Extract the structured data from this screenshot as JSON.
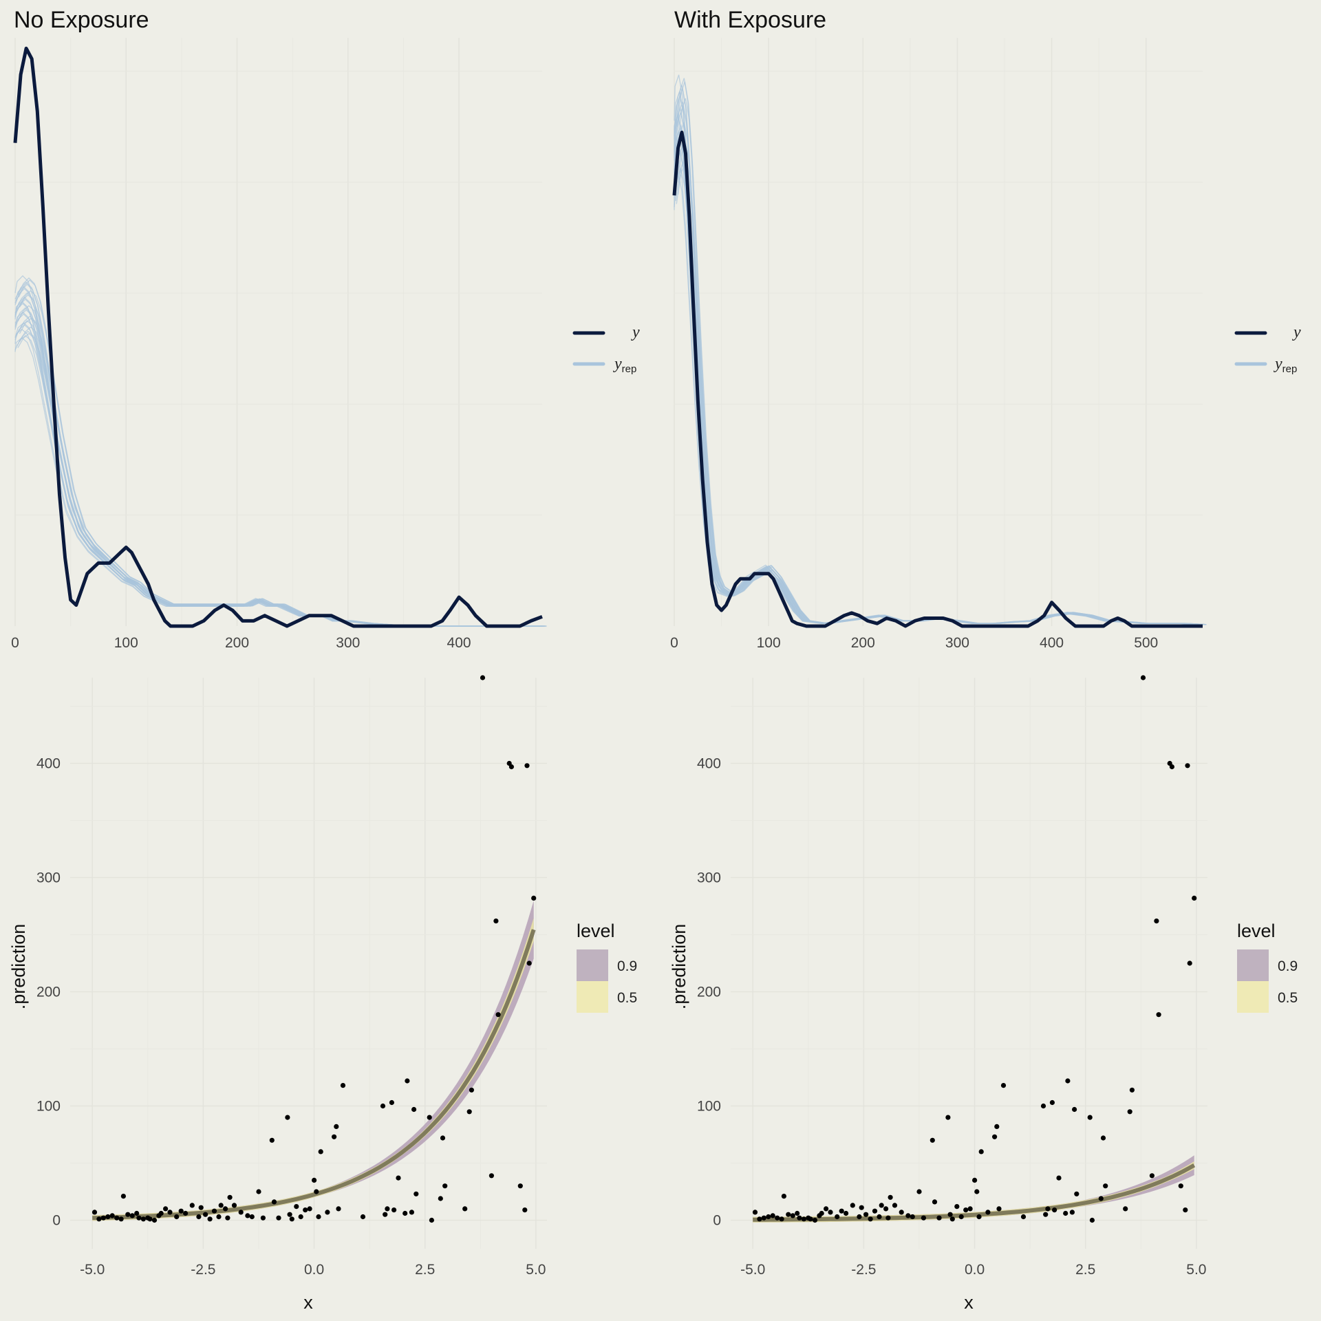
{
  "chart_data": [
    {
      "type": "line",
      "subtype": "density-overlay",
      "title": "No Exposure",
      "xlim": [
        0,
        475
      ],
      "x_ticks": [
        "0",
        "100",
        "200",
        "300",
        "400"
      ],
      "x_tick_values": [
        0,
        100,
        200,
        300,
        400
      ],
      "y_ticks_shown": false,
      "grid": true,
      "legend": {
        "placement": "right",
        "entries": [
          {
            "main": "y",
            "sub": "",
            "color": "#0b1a3d"
          },
          {
            "main": "y",
            "sub": "rep",
            "color": "#a9c4dc"
          }
        ]
      },
      "series": [
        {
          "name": "y",
          "color": "#0b1a3d",
          "x": [
            0,
            5,
            10,
            15,
            20,
            25,
            30,
            35,
            40,
            45,
            50,
            55,
            60,
            65,
            70,
            75,
            80,
            85,
            90,
            95,
            100,
            105,
            110,
            115,
            120,
            125,
            130,
            135,
            140,
            150,
            160,
            170,
            180,
            188,
            196,
            205,
            215,
            225,
            235,
            245,
            255,
            265,
            275,
            285,
            295,
            305,
            320,
            340,
            360,
            375,
            385,
            392,
            400,
            408,
            415,
            425,
            440,
            455,
            465,
            475
          ],
          "y": [
            0.0092,
            0.0105,
            0.011,
            0.0108,
            0.0098,
            0.008,
            0.006,
            0.0042,
            0.0025,
            0.0013,
            0.0005,
            0.0004,
            0.0007,
            0.001,
            0.0011,
            0.0012,
            0.0012,
            0.0012,
            0.0013,
            0.0014,
            0.0015,
            0.0014,
            0.0012,
            0.001,
            0.0008,
            0.0005,
            0.0003,
            0.0001,
            0.0,
            0.0,
            0.0,
            0.0001,
            0.0003,
            0.0004,
            0.0003,
            0.0001,
            0.0001,
            0.0002,
            0.0001,
            0.0,
            0.0001,
            0.0002,
            0.0002,
            0.0002,
            0.0001,
            0.0,
            0.0,
            0.0,
            0.0,
            0.0,
            0.0001,
            0.0003,
            0.00055,
            0.0004,
            0.0002,
            0.0,
            0.0,
            0.0,
            0.0001,
            0.00018
          ]
        },
        {
          "name": "y_rep",
          "color": "#a9c4dc",
          "x": [
            0,
            5,
            10,
            15,
            20,
            25,
            30,
            35,
            40,
            50,
            60,
            70,
            80,
            90,
            100,
            110,
            120,
            130,
            140,
            150,
            160,
            170,
            180,
            190,
            200,
            210,
            220,
            230,
            240,
            250,
            260,
            270,
            280,
            290,
            300,
            320,
            340,
            360,
            380,
            400,
            420,
            440,
            460,
            475
          ],
          "y": [
            0.0058,
            0.006,
            0.0061,
            0.006,
            0.0057,
            0.0052,
            0.0046,
            0.004,
            0.0034,
            0.0024,
            0.0018,
            0.0015,
            0.0013,
            0.0011,
            0.0009,
            0.0008,
            0.0006,
            0.0005,
            0.0004,
            0.0004,
            0.0004,
            0.0004,
            0.0004,
            0.0004,
            0.0004,
            0.0004,
            0.0005,
            0.0004,
            0.0004,
            0.0003,
            0.0002,
            0.0002,
            0.0002,
            0.0001,
            0.0001,
            5e-05,
            2e-05,
            0.0,
            0.0,
            0.0,
            0.0,
            0.0,
            0.0,
            0.0
          ]
        }
      ]
    },
    {
      "type": "line",
      "subtype": "density-overlay",
      "title": "With Exposure",
      "xlim": [
        0,
        560
      ],
      "x_ticks": [
        "0",
        "100",
        "200",
        "300",
        "400",
        "500"
      ],
      "x_tick_values": [
        0,
        100,
        200,
        300,
        400,
        500
      ],
      "y_ticks_shown": false,
      "grid": true,
      "legend": {
        "placement": "right",
        "entries": [
          {
            "main": "y",
            "sub": "",
            "color": "#0b1a3d"
          },
          {
            "main": "y",
            "sub": "rep",
            "color": "#a9c4dc"
          }
        ]
      },
      "series": [
        {
          "name": "y",
          "color": "#0b1a3d",
          "x": [
            0,
            4,
            8,
            12,
            16,
            20,
            25,
            30,
            35,
            40,
            45,
            50,
            55,
            60,
            65,
            70,
            75,
            80,
            85,
            90,
            95,
            100,
            105,
            110,
            115,
            120,
            125,
            130,
            140,
            150,
            160,
            170,
            180,
            188,
            196,
            205,
            215,
            225,
            235,
            245,
            255,
            265,
            275,
            285,
            295,
            305,
            320,
            340,
            360,
            375,
            385,
            392,
            400,
            408,
            415,
            425,
            440,
            455,
            463,
            470,
            477,
            485,
            500,
            520,
            540,
            560
          ],
          "y": [
            0.0082,
            0.0091,
            0.0094,
            0.009,
            0.0078,
            0.0062,
            0.0043,
            0.0028,
            0.0016,
            0.0008,
            0.0004,
            0.0003,
            0.0004,
            0.0006,
            0.0008,
            0.0009,
            0.0009,
            0.0009,
            0.001,
            0.001,
            0.001,
            0.001,
            0.0009,
            0.0007,
            0.0005,
            0.0003,
            0.0001,
            5e-05,
            0.0,
            0.0,
            0.0,
            0.0001,
            0.0002,
            0.00025,
            0.0002,
            0.0001,
            5e-05,
            0.00015,
            0.0001,
            0.0,
            0.0001,
            0.00015,
            0.00015,
            0.00015,
            0.0001,
            0.0,
            0.0,
            0.0,
            0.0,
            0.0,
            0.0001,
            0.0002,
            0.00045,
            0.0003,
            0.00015,
            0.0,
            0.0,
            0.0,
            0.0001,
            0.00015,
            0.0001,
            0.0,
            0.0,
            0.0,
            0.0,
            0.0
          ]
        },
        {
          "name": "y_rep",
          "color": "#a9c4dc",
          "x": [
            0,
            4,
            8,
            12,
            16,
            20,
            25,
            30,
            35,
            40,
            45,
            50,
            60,
            70,
            80,
            90,
            100,
            110,
            120,
            130,
            140,
            160,
            180,
            200,
            220,
            240,
            260,
            280,
            300,
            320,
            340,
            360,
            380,
            400,
            420,
            440,
            460,
            480,
            500,
            520,
            540,
            560
          ],
          "y": [
            0.0088,
            0.0094,
            0.0096,
            0.0092,
            0.0082,
            0.0068,
            0.005,
            0.0034,
            0.0022,
            0.0013,
            0.0009,
            0.0007,
            0.0006,
            0.0007,
            0.0009,
            0.001,
            0.0011,
            0.0009,
            0.0006,
            0.0003,
            0.0001,
            5e-05,
            0.0001,
            0.00015,
            0.0002,
            0.0001,
            0.0001,
            0.00015,
            0.0001,
            5e-05,
            5e-05,
            8e-05,
            0.0001,
            0.0002,
            0.00025,
            0.0002,
            0.0001,
            8e-05,
            5e-05,
            5e-05,
            5e-05,
            3e-05
          ]
        }
      ]
    },
    {
      "type": "scatter",
      "subtype": "scatter-with-prediction-ribbon",
      "title": "",
      "xlabel": "x",
      "ylabel": ".prediction",
      "xlim": [
        -5.5,
        5.25
      ],
      "ylim": [
        -25,
        475
      ],
      "x_ticks": [
        "-5.0",
        "-2.5",
        "0.0",
        "2.5",
        "5.0"
      ],
      "x_tick_values": [
        -5.0,
        -2.5,
        0.0,
        2.5,
        5.0
      ],
      "y_ticks": [
        "0",
        "100",
        "200",
        "300",
        "400"
      ],
      "y_tick_values": [
        0,
        100,
        200,
        300,
        400
      ],
      "grid": true,
      "legend": {
        "placement": "right",
        "title": "level",
        "entries": [
          {
            "label": "0.9",
            "color": "#bfb2bf"
          },
          {
            "label": "0.5",
            "color": "#efeab5"
          }
        ]
      },
      "fit": {
        "a": 22.5,
        "b": 0.49,
        "x_start": -5.0,
        "x_end": 4.95,
        "color": "#6e6a4f",
        "band90_color": "#b9a6bb",
        "band50_color": "#e6dfa6",
        "width_frac_90": 0.1,
        "width_frac_50": 0.04
      },
      "points": {
        "color": "#000000",
        "x": [
          -4.95,
          -4.85,
          -4.75,
          -4.65,
          -4.55,
          -4.45,
          -4.35,
          -4.3,
          -4.2,
          -4.1,
          -4.0,
          -3.95,
          -3.85,
          -3.75,
          -3.7,
          -3.6,
          -3.5,
          -3.45,
          -3.35,
          -3.25,
          -3.1,
          -3.0,
          -2.9,
          -2.75,
          -2.6,
          -2.55,
          -2.45,
          -2.35,
          -2.25,
          -2.15,
          -2.1,
          -2.0,
          -1.95,
          -1.9,
          -1.8,
          -1.65,
          -1.5,
          -1.4,
          -1.25,
          -1.15,
          -0.95,
          -0.9,
          -0.8,
          -0.6,
          -0.55,
          -0.5,
          -0.4,
          -0.3,
          -0.2,
          -0.1,
          0.0,
          0.05,
          0.1,
          0.15,
          0.3,
          0.45,
          0.5,
          0.55,
          0.65,
          1.1,
          1.55,
          1.6,
          1.65,
          1.75,
          1.8,
          1.9,
          2.05,
          2.1,
          2.2,
          2.25,
          2.3,
          2.6,
          2.65,
          2.85,
          2.9,
          2.95,
          3.4,
          3.5,
          3.55,
          3.8,
          4.0,
          4.1,
          4.15,
          4.4,
          4.45,
          4.65,
          4.75,
          4.8,
          4.85,
          4.95
        ],
        "y": [
          7,
          1,
          2,
          3,
          4,
          2,
          1,
          21,
          5,
          4,
          6,
          2,
          1,
          2,
          1,
          0,
          4,
          6,
          10,
          7,
          3,
          8,
          6,
          13,
          3,
          11,
          5,
          1,
          8,
          3,
          13,
          10,
          2,
          20,
          13,
          7,
          4,
          3,
          25,
          2,
          70,
          16,
          2,
          90,
          5,
          1,
          12,
          3,
          9,
          10,
          35,
          25,
          3,
          60,
          7,
          73,
          82,
          10,
          118,
          3,
          100,
          5,
          10,
          103,
          9,
          37,
          6,
          122,
          7,
          97,
          23,
          90,
          0,
          19,
          72,
          30,
          10,
          95,
          114,
          475,
          39,
          262,
          180,
          400,
          397,
          30,
          9,
          398,
          225,
          282
        ]
      }
    },
    {
      "type": "scatter",
      "subtype": "scatter-with-prediction-ribbon",
      "title": "",
      "xlabel": "x",
      "ylabel": ".prediction",
      "xlim": [
        -5.5,
        5.25
      ],
      "ylim": [
        -25,
        475
      ],
      "x_ticks": [
        "-5.0",
        "-2.5",
        "0.0",
        "2.5",
        "5.0"
      ],
      "x_tick_values": [
        -5.0,
        -2.5,
        0.0,
        2.5,
        5.0
      ],
      "y_ticks": [
        "0",
        "100",
        "200",
        "300",
        "400"
      ],
      "y_tick_values": [
        0,
        100,
        200,
        300,
        400
      ],
      "grid": true,
      "legend": {
        "placement": "right",
        "title": "level",
        "entries": [
          {
            "label": "0.9",
            "color": "#bfb2bf"
          },
          {
            "label": "0.5",
            "color": "#efeab5"
          }
        ]
      },
      "fit": {
        "a": 4.7,
        "b": 0.47,
        "x_start": -5.0,
        "x_end": 4.95,
        "color": "#6e6a4f",
        "band90_color": "#b9a6bb",
        "band50_color": "#e6dfa6",
        "width_frac_90": 0.18,
        "width_frac_50": 0.07
      },
      "points": {
        "color": "#000000",
        "x": [
          -4.95,
          -4.85,
          -4.75,
          -4.65,
          -4.55,
          -4.45,
          -4.35,
          -4.3,
          -4.2,
          -4.1,
          -4.0,
          -3.95,
          -3.85,
          -3.75,
          -3.7,
          -3.6,
          -3.5,
          -3.45,
          -3.35,
          -3.25,
          -3.1,
          -3.0,
          -2.9,
          -2.75,
          -2.6,
          -2.55,
          -2.45,
          -2.35,
          -2.25,
          -2.15,
          -2.1,
          -2.0,
          -1.95,
          -1.9,
          -1.8,
          -1.65,
          -1.5,
          -1.4,
          -1.25,
          -1.15,
          -0.95,
          -0.9,
          -0.8,
          -0.6,
          -0.55,
          -0.5,
          -0.4,
          -0.3,
          -0.2,
          -0.1,
          0.0,
          0.05,
          0.1,
          0.15,
          0.3,
          0.45,
          0.5,
          0.55,
          0.65,
          1.1,
          1.55,
          1.6,
          1.65,
          1.75,
          1.8,
          1.9,
          2.05,
          2.1,
          2.2,
          2.25,
          2.3,
          2.6,
          2.65,
          2.85,
          2.9,
          2.95,
          3.4,
          3.5,
          3.55,
          3.8,
          4.0,
          4.1,
          4.15,
          4.4,
          4.45,
          4.65,
          4.75,
          4.8,
          4.85,
          4.95
        ],
        "y": [
          7,
          1,
          2,
          3,
          4,
          2,
          1,
          21,
          5,
          4,
          6,
          2,
          1,
          2,
          1,
          0,
          4,
          6,
          10,
          7,
          3,
          8,
          6,
          13,
          3,
          11,
          5,
          1,
          8,
          3,
          13,
          10,
          2,
          20,
          13,
          7,
          4,
          3,
          25,
          2,
          70,
          16,
          2,
          90,
          5,
          1,
          12,
          3,
          9,
          10,
          35,
          25,
          3,
          60,
          7,
          73,
          82,
          10,
          118,
          3,
          100,
          5,
          10,
          103,
          9,
          37,
          6,
          122,
          7,
          97,
          23,
          90,
          0,
          19,
          72,
          30,
          10,
          95,
          114,
          475,
          39,
          262,
          180,
          400,
          397,
          30,
          9,
          398,
          225,
          282
        ]
      }
    }
  ]
}
